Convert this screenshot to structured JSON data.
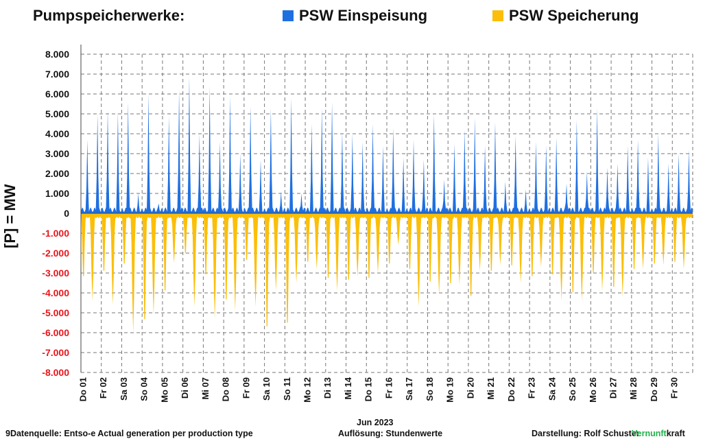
{
  "header": {
    "title": "Pumpspeicherwerke:"
  },
  "colors": {
    "einspeisung": "#1f6fe0",
    "speicherung": "#fbbf0a",
    "positive_tick": "#111111",
    "negative_tick": "#e8151b",
    "grid": "#777777",
    "brand_green": "#22b14c"
  },
  "footer": {
    "source": "9Datenquelle: Entso-e  Actual generation per production type",
    "resolution": "Auflösung: Stundenwerte",
    "author": "Darstellung:  Rolf Schuster",
    "brand_part1": "Vernunft",
    "brand_part2": "kraft"
  },
  "chart_data": {
    "type": "area",
    "xlabel": "Jun 2023",
    "ylabel": "[P]  = MW",
    "ylim": [
      -8000,
      8000
    ],
    "ytick_step": 1000,
    "yticks": [
      "8.000",
      "7.000",
      "6.000",
      "5.000",
      "4.000",
      "3.000",
      "2.000",
      "1.000",
      "0",
      "-1.000",
      "-2.000",
      "-3.000",
      "-4.000",
      "-5.000",
      "-6.000",
      "-7.000",
      "-8.000"
    ],
    "grid": true,
    "legend_position": "top",
    "x_day_labels": [
      "Do 01",
      "Fr 02",
      "Sa 03",
      "So 04",
      "Mo 05",
      "Di 06",
      "Mi 07",
      "Do 08",
      "Fr 09",
      "Sa 10",
      "So 11",
      "Mo 12",
      "Di 13",
      "Mi 14",
      "Do 15",
      "Fr 16",
      "Sa 17",
      "So 18",
      "Mo 19",
      "Di 20",
      "Mi 21",
      "Do 22",
      "Fr 23",
      "Sa 24",
      "So 25",
      "Mo 26",
      "Di 27",
      "Mi 28",
      "Do 29",
      "Fr 30"
    ],
    "series": [
      {
        "name": "PSW Einspeisung",
        "daily_peaks": [
          [
            3700,
            5000
          ],
          [
            5200,
            5100
          ],
          [
            5600,
            1000
          ],
          [
            6000,
            500
          ],
          [
            4900,
            6200
          ],
          [
            6900,
            4000
          ],
          [
            6400,
            3600
          ],
          [
            5900,
            3000
          ],
          [
            5400,
            2700
          ],
          [
            5300,
            1100
          ],
          [
            5800,
            1000
          ],
          [
            4500,
            5300
          ],
          [
            5600,
            4100
          ],
          [
            4000,
            3600
          ],
          [
            4500,
            3400
          ],
          [
            4300,
            2800
          ],
          [
            3700,
            2700
          ],
          [
            5000,
            1700
          ],
          [
            3500,
            4200
          ],
          [
            4800,
            3400
          ],
          [
            4600,
            1600
          ],
          [
            3900,
            1200
          ],
          [
            3600,
            3400
          ],
          [
            3800,
            1500
          ],
          [
            4700,
            2100
          ],
          [
            5300,
            2300
          ],
          [
            2500,
            3400
          ],
          [
            3700,
            2800
          ],
          [
            4000,
            2500
          ],
          [
            3000,
            3200
          ]
        ]
      },
      {
        "name": "PSW Speicherung",
        "daily_troughs": [
          [
            -3500,
            -4400
          ],
          [
            -3200,
            -4600
          ],
          [
            -2800,
            -6000
          ],
          [
            -5900,
            -5100
          ],
          [
            -4300,
            -2500
          ],
          [
            -2200,
            -4700
          ],
          [
            -3400,
            -5300
          ],
          [
            -4800,
            -4900
          ],
          [
            -2600,
            -4700
          ],
          [
            -6300,
            -3900
          ],
          [
            -6100,
            -3500
          ],
          [
            -2700,
            -2800
          ],
          [
            -3600,
            -3900
          ],
          [
            -3700,
            -3200
          ],
          [
            -3600,
            -3000
          ],
          [
            -2800,
            -1600
          ],
          [
            -3100,
            -4700
          ],
          [
            -3800,
            -4100
          ],
          [
            -3900,
            -3600
          ],
          [
            -4600,
            -2900
          ],
          [
            -3200,
            -2600
          ],
          [
            -2900,
            -3500
          ],
          [
            -3500,
            -2700
          ],
          [
            -3400,
            -4400
          ],
          [
            -4400,
            -4400
          ],
          [
            -3300,
            -3900
          ],
          [
            -4100,
            -4200
          ],
          [
            -3100,
            -2800
          ],
          [
            -2800,
            -2600
          ],
          [
            -2700,
            -2800
          ]
        ]
      }
    ]
  }
}
